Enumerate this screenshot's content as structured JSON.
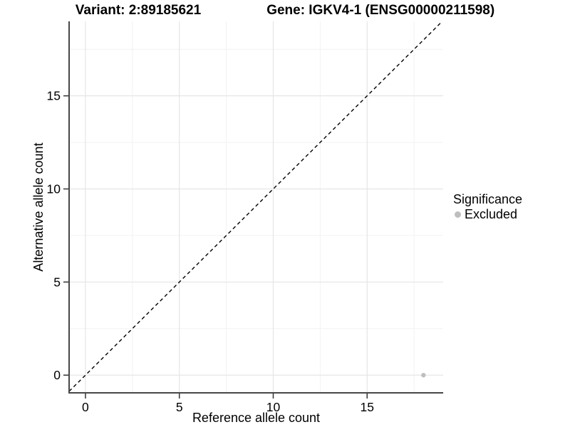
{
  "header": {
    "variant_title": "Variant: 2:89185621",
    "gene_title": "Gene: IGKV4-1 (ENSG00000211598)"
  },
  "legend": {
    "title": "Significance",
    "items": [
      {
        "label": "Excluded",
        "color": "#bebebe"
      }
    ]
  },
  "chart_data": {
    "type": "scatter",
    "title": "Variant: 2:89185621   Gene: IGKV4-1 (ENSG00000211598)",
    "xlabel": "Reference allele count",
    "ylabel": "Alternative allele count",
    "xlim": [
      -0.87,
      19.05
    ],
    "ylim": [
      -0.95,
      19.0
    ],
    "x_ticks": [
      0,
      5,
      10,
      15
    ],
    "y_ticks": [
      0,
      5,
      10,
      15
    ],
    "x_minor_ticks": [
      2.5,
      7.5,
      12.5,
      17.5
    ],
    "y_minor_ticks": [
      2.5,
      7.5,
      12.5,
      17.5
    ],
    "grid": "major and minor, light gray, white background",
    "legend_position": "right",
    "legend_title": "Significance",
    "series": [
      {
        "name": "Excluded",
        "color": "#bebebe",
        "points": [
          {
            "x": 18,
            "y": 0
          }
        ]
      }
    ],
    "reference_line": {
      "kind": "identity",
      "slope": 1,
      "intercept": 0,
      "linetype": "dashed",
      "color": "#000000"
    }
  },
  "style": {
    "axis_line_color": "#474747",
    "tick_mark_color": "#333333",
    "major_grid_color": "#e5e5e5",
    "minor_grid_color": "#f2f2f2",
    "tick_label_color": "#000000"
  }
}
